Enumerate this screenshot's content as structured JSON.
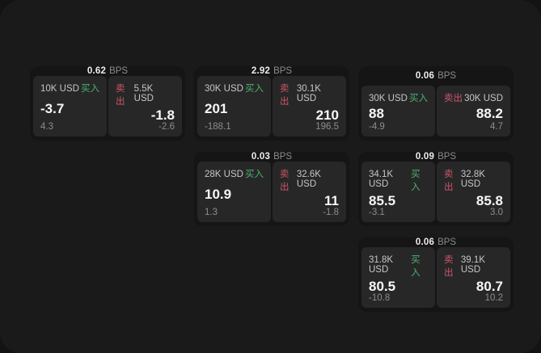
{
  "labels": {
    "bps_unit": "BPS",
    "buy": "买入",
    "sell": "卖出"
  },
  "colors": {
    "page_background": "#131314",
    "panel_background": "#1a1a1b",
    "card_background": "#151516",
    "tile_background": "#272728",
    "buy_green": "#4bb36d",
    "sell_red": "#cd5668",
    "value_white": "#f7f7f8",
    "muted_gray": "#8d8d8f"
  },
  "cards": [
    {
      "bps": "0.62",
      "buy": {
        "amount": "10K USD",
        "value": "-3.7",
        "change": "4.3"
      },
      "sell": {
        "amount": "5.5K USD",
        "value": "-1.8",
        "change": "-2.6"
      }
    },
    {
      "bps": "2.92",
      "buy": {
        "amount": "30K USD",
        "value": "201",
        "change": "-188.1"
      },
      "sell": {
        "amount": "30.1K USD",
        "value": "210",
        "change": "196.5"
      }
    },
    {
      "bps": "0.06",
      "buy": {
        "amount": "30K USD",
        "value": "88",
        "change": "-4.9"
      },
      "sell": {
        "amount": "30K USD",
        "value": "88.2",
        "change": "4.7"
      }
    },
    {
      "bps": "0.03",
      "buy": {
        "amount": "28K USD",
        "value": "10.9",
        "change": "1.3"
      },
      "sell": {
        "amount": "32.6K USD",
        "value": "11",
        "change": "-1.8"
      }
    },
    {
      "bps": "0.09",
      "buy": {
        "amount": "34.1K USD",
        "value": "85.5",
        "change": "-3.1"
      },
      "sell": {
        "amount": "32.8K USD",
        "value": "85.8",
        "change": "3.0"
      }
    },
    {
      "bps": "0.06",
      "buy": {
        "amount": "31.8K USD",
        "value": "80.5",
        "change": "-10.8"
      },
      "sell": {
        "amount": "39.1K USD",
        "value": "80.7",
        "change": "10.2"
      }
    }
  ]
}
